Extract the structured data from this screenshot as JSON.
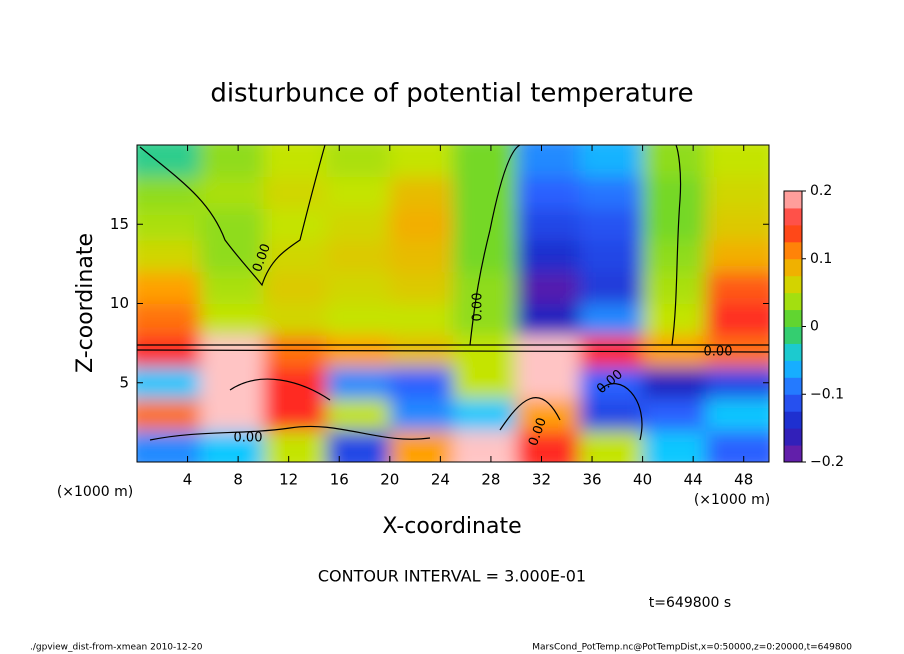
{
  "chart_data": {
    "type": "heatmap",
    "title": "disturbunce of potential temperature",
    "x_label": "X-coordinate",
    "y_label": "Z-coordinate",
    "x_unit_left": "(×1000 m)",
    "x_unit_right": "(×1000 m)",
    "contour_note": "CONTOUR INTERVAL = 3.000E-01",
    "time_note": "t=649800 s",
    "footer_left": "./gpview_dist-from-xmean  2010-12-20",
    "footer_right": "MarsCond_PotTemp.nc@PotTempDist,x=0:50000,z=0:20000,t=649800",
    "contour_labels": [
      "0.00",
      "0.00",
      "0.00",
      "0.00",
      "0.00",
      "0.00"
    ],
    "x": [
      2.5,
      7.5,
      12.5,
      17.5,
      22.5,
      27.5,
      32.5,
      37.5,
      42.5,
      47.5
    ],
    "y": [
      1,
      3,
      5,
      7,
      9,
      11,
      13,
      15,
      17,
      19
    ],
    "values": [
      [
        -0.08,
        -0.05,
        0.05,
        -0.12,
        0.1,
        0.2,
        0.15,
        0.05,
        -0.05,
        -0.1
      ],
      [
        0.12,
        0.2,
        0.15,
        0.05,
        -0.08,
        -0.05,
        0.1,
        -0.12,
        -0.1,
        -0.05
      ],
      [
        -0.05,
        0.2,
        0.15,
        -0.08,
        -0.1,
        0.05,
        0.2,
        -0.1,
        -0.15,
        -0.12
      ],
      [
        0.15,
        0.2,
        0.12,
        0.1,
        0.08,
        0.05,
        0.2,
        0.15,
        0.1,
        0.12
      ],
      [
        0.12,
        0.05,
        0.06,
        0.05,
        0.05,
        0.03,
        -0.15,
        -0.08,
        0.05,
        0.15
      ],
      [
        0.1,
        0.04,
        0.07,
        0.06,
        0.07,
        0.03,
        -0.18,
        -0.13,
        0.04,
        0.13
      ],
      [
        0.06,
        0.03,
        0.06,
        0.07,
        0.08,
        0.02,
        -0.14,
        -0.12,
        0.03,
        0.09
      ],
      [
        0.04,
        0.03,
        0.05,
        0.06,
        0.09,
        0.02,
        -0.12,
        -0.11,
        0.02,
        0.07
      ],
      [
        0.03,
        0.04,
        0.06,
        0.05,
        0.08,
        0.02,
        -0.1,
        -0.09,
        0.02,
        0.06
      ],
      [
        -0.02,
        0.03,
        0.05,
        0.04,
        0.05,
        0.02,
        -0.08,
        -0.06,
        0.03,
        0.05
      ]
    ],
    "xlim": [
      0,
      50
    ],
    "ylim": [
      0,
      20
    ],
    "xticks": [
      4,
      8,
      12,
      16,
      20,
      24,
      28,
      32,
      36,
      40,
      44,
      48
    ],
    "yticks": [
      5,
      10,
      15
    ],
    "clim": [
      -0.2,
      0.2
    ],
    "cticks": [
      0.2,
      0.1,
      0,
      {
        "value": -0.1,
        "label": "−0.1"
      },
      {
        "value": -0.2,
        "label": "−0.2"
      }
    ],
    "colormap": [
      "#7a1fa2",
      "#1a20c0",
      "#2a60ff",
      "#10c8ff",
      "#40d040",
      "#c4e400",
      "#ffa000",
      "#ff2a20",
      "#ffc4c4"
    ]
  }
}
